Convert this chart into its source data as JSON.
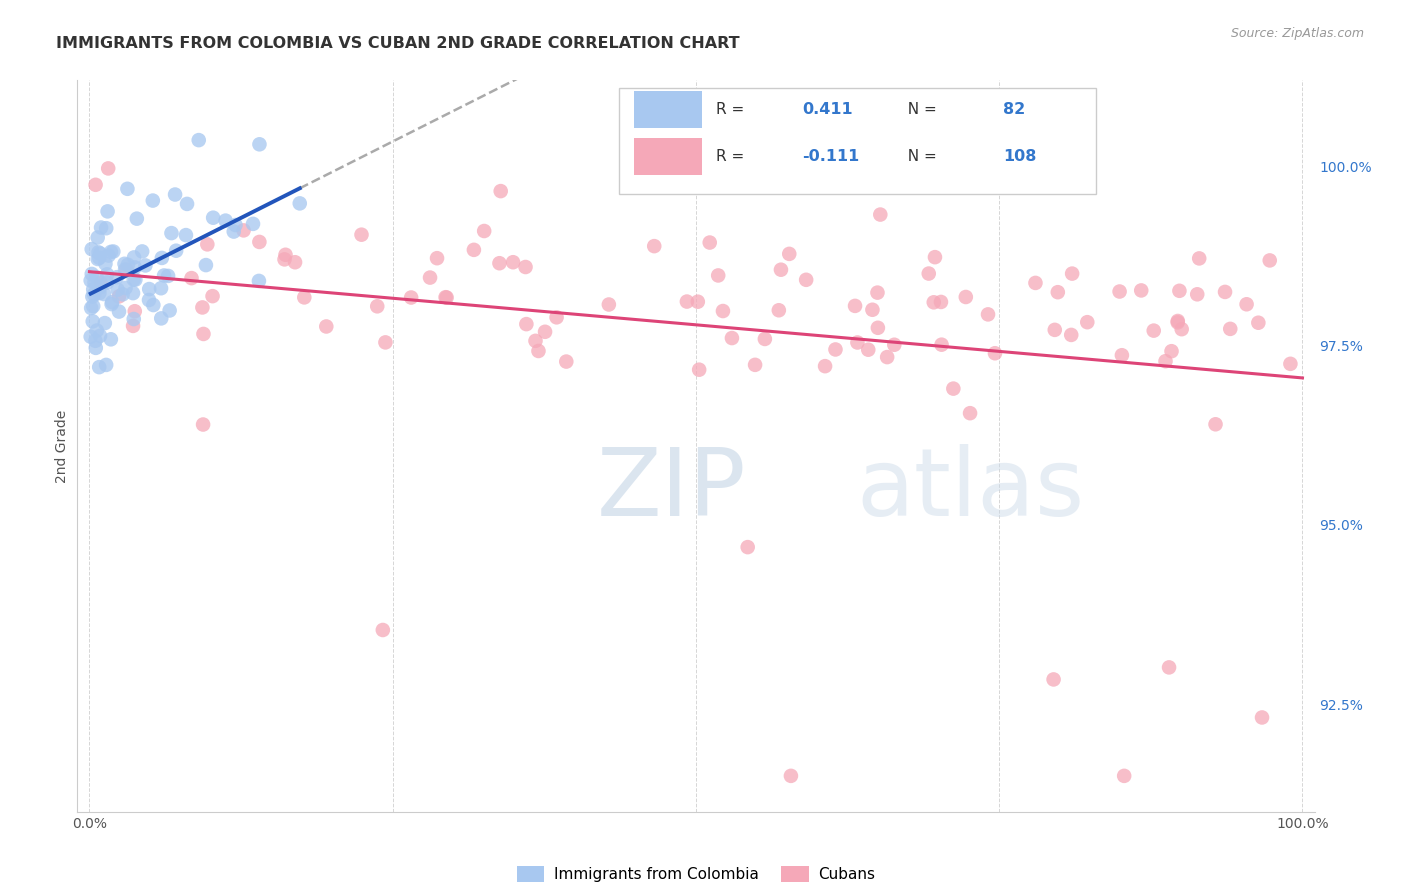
{
  "title": "IMMIGRANTS FROM COLOMBIA VS CUBAN 2ND GRADE CORRELATION CHART",
  "source": "Source: ZipAtlas.com",
  "ylabel": "2nd Grade",
  "right_ytick_labels": [
    "92.5%",
    "95.0%",
    "97.5%",
    "100.0%"
  ],
  "right_ytick_values": [
    92.5,
    95.0,
    97.5,
    100.0
  ],
  "colombia_color": "#a8c8f0",
  "cuba_color": "#f5a8b8",
  "colombia_R": 0.411,
  "colombia_N": 82,
  "cuba_R": -0.111,
  "cuba_N": 108,
  "colombia_line_color": "#2255bb",
  "cuba_line_color": "#dd4477",
  "dashed_color": "#aaaaaa",
  "legend_label_colombia": "Immigrants from Colombia",
  "legend_label_cuba": "Cubans",
  "background_color": "#ffffff",
  "grid_color": "#cccccc",
  "title_color": "#333333",
  "axis_label_color": "#555555",
  "right_axis_color": "#3377cc",
  "watermark_zip_color": "#c8d8e8",
  "watermark_atlas_color": "#b8ccd8",
  "ylim_low": 91.0,
  "ylim_high": 101.2,
  "xlim_low": -0.01,
  "xlim_high": 1.01
}
